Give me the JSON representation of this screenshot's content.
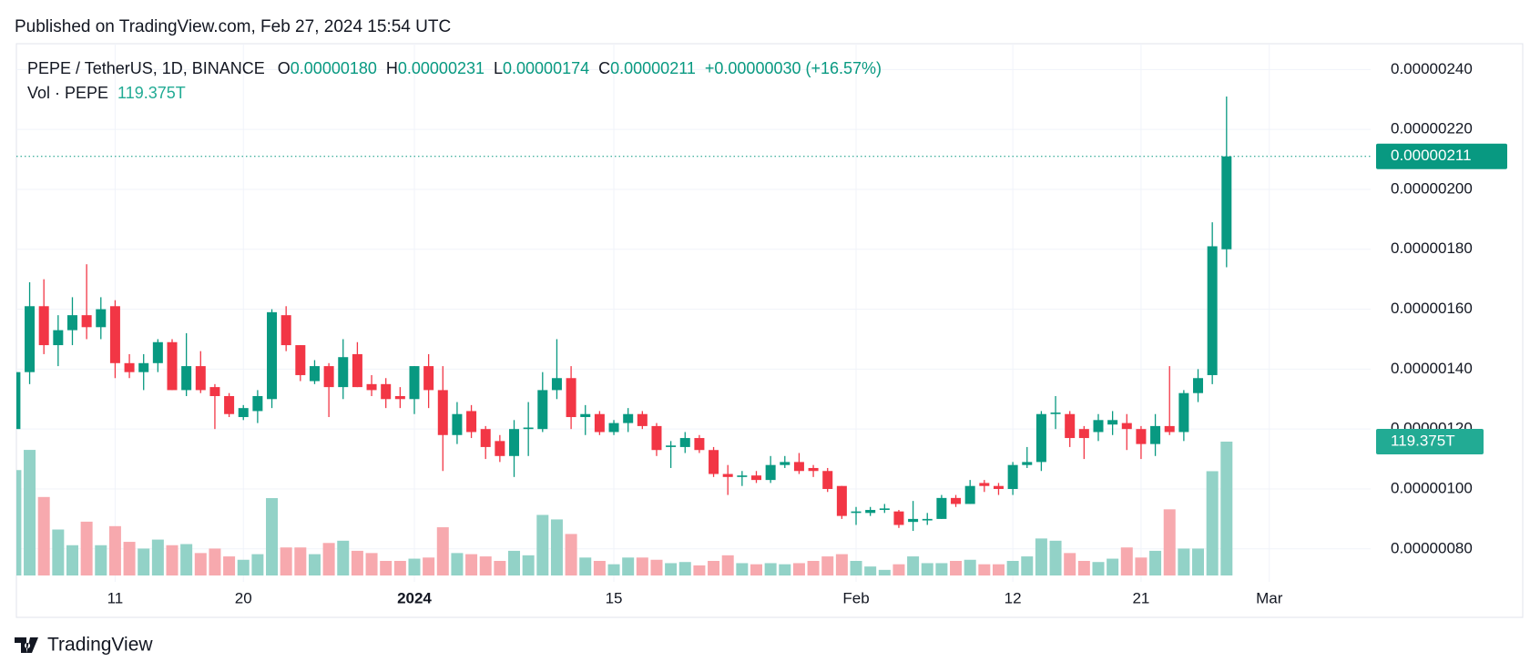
{
  "published": "Published on TradingView.com, Feb 27, 2024 15:54 UTC",
  "brand": "TradingView",
  "header": {
    "symbol": "PEPE / TetherUS, 1D, BINANCE",
    "open_label": "O",
    "open": "0.00000180",
    "high_label": "H",
    "high": "0.00000231",
    "low_label": "L",
    "low": "0.00000174",
    "close_label": "C",
    "close": "0.00000211",
    "change": "+0.00000030 (+16.57%)",
    "volume_title": "Vol · PEPE"
  },
  "chart_data": {
    "type": "candlestick",
    "categories": [
      null,
      null,
      null,
      null,
      null,
      null,
      null,
      "11",
      null,
      null,
      null,
      null,
      null,
      null,
      null,
      null,
      "20",
      null,
      null,
      null,
      null,
      null,
      null,
      null,
      null,
      null,
      null,
      null,
      "2024",
      null,
      null,
      null,
      null,
      null,
      null,
      null,
      null,
      null,
      null,
      null,
      null,
      null,
      "15",
      null,
      null,
      null,
      null,
      null,
      null,
      null,
      null,
      null,
      null,
      null,
      null,
      null,
      null,
      null,
      null,
      "Feb",
      null,
      null,
      null,
      null,
      null,
      null,
      null,
      null,
      null,
      null,
      "12",
      null,
      null,
      null,
      null,
      null,
      null,
      null,
      null,
      "21",
      null,
      null,
      null,
      null,
      null,
      null,
      null,
      null,
      "Mar"
    ],
    "open": [
      1.2e-06,
      1.39e-06,
      1.61e-06,
      1.48e-06,
      1.53e-06,
      1.58e-06,
      1.54e-06,
      1.61e-06,
      1.42e-06,
      1.39e-06,
      1.42e-06,
      1.49e-06,
      1.33e-06,
      1.41e-06,
      1.34e-06,
      1.31e-06,
      1.24e-06,
      1.26e-06,
      1.3e-06,
      1.58e-06,
      1.48e-06,
      1.36e-06,
      1.41e-06,
      1.34e-06,
      1.45e-06,
      1.35e-06,
      1.35e-06,
      1.31e-06,
      1.3e-06,
      1.41e-06,
      1.33e-06,
      1.18e-06,
      1.26e-06,
      1.2e-06,
      1.16e-06,
      1.11e-06,
      1.2e-06,
      1.2e-06,
      1.33e-06,
      1.37e-06,
      1.24e-06,
      1.25e-06,
      1.19e-06,
      1.22e-06,
      1.25e-06,
      1.21e-06,
      1.14e-06,
      1.14e-06,
      1.17e-06,
      1.13e-06,
      1.05e-06,
      1.04e-06,
      1.045e-06,
      1.03e-06,
      1.08e-06,
      1.09e-06,
      1.07e-06,
      1.06e-06,
      1.01e-06,
      9.2e-07,
      9.2e-07,
      9.3e-07,
      9.25e-07,
      8.9e-07,
      8.95e-07,
      9e-07,
      9.7e-07,
      9.5e-07,
      1.02e-06,
      1.01e-06,
      1e-06,
      1.08e-06,
      1.09e-06,
      1.25e-06,
      1.25e-06,
      1.2e-06,
      1.19e-06,
      1.215e-06,
      1.22e-06,
      1.2e-06,
      1.15e-06,
      1.21e-06,
      1.19e-06,
      1.32e-06,
      1.38e-06,
      1.8e-06,
      null,
      null,
      null
    ],
    "high": [
      1.4e-06,
      1.69e-06,
      1.7e-06,
      1.58e-06,
      1.64e-06,
      1.75e-06,
      1.64e-06,
      1.63e-06,
      1.45e-06,
      1.45e-06,
      1.5e-06,
      1.5e-06,
      1.52e-06,
      1.46e-06,
      1.35e-06,
      1.32e-06,
      1.28e-06,
      1.33e-06,
      1.6e-06,
      1.61e-06,
      1.48e-06,
      1.43e-06,
      1.42e-06,
      1.5e-06,
      1.49e-06,
      1.38e-06,
      1.37e-06,
      1.34e-06,
      1.41e-06,
      1.45e-06,
      1.41e-06,
      1.29e-06,
      1.28e-06,
      1.21e-06,
      1.18e-06,
      1.23e-06,
      1.29e-06,
      1.39e-06,
      1.5e-06,
      1.41e-06,
      1.28e-06,
      1.26e-06,
      1.23e-06,
      1.27e-06,
      1.26e-06,
      1.22e-06,
      1.16e-06,
      1.19e-06,
      1.18e-06,
      1.14e-06,
      1.08e-06,
      1.06e-06,
      1.06e-06,
      1.11e-06,
      1.11e-06,
      1.12e-06,
      1.08e-06,
      1.07e-06,
      1.01e-06,
      9.4e-07,
      9.4e-07,
      9.5e-07,
      9.3e-07,
      9.6e-07,
      9.2e-07,
      9.8e-07,
      9.8e-07,
      1.03e-06,
      1.03e-06,
      1.02e-06,
      1.09e-06,
      1.14e-06,
      1.26e-06,
      1.31e-06,
      1.26e-06,
      1.21e-06,
      1.25e-06,
      1.26e-06,
      1.25e-06,
      1.21e-06,
      1.25e-06,
      1.41e-06,
      1.33e-06,
      1.4e-06,
      1.89e-06,
      2.31e-06,
      null,
      null,
      null
    ],
    "low": [
      1.2e-06,
      1.35e-06,
      1.45e-06,
      1.41e-06,
      1.48e-06,
      1.5e-06,
      1.5e-06,
      1.37e-06,
      1.37e-06,
      1.33e-06,
      1.39e-06,
      1.33e-06,
      1.31e-06,
      1.32e-06,
      1.2e-06,
      1.24e-06,
      1.23e-06,
      1.22e-06,
      1.27e-06,
      1.46e-06,
      1.36e-06,
      1.35e-06,
      1.24e-06,
      1.3e-06,
      1.34e-06,
      1.31e-06,
      1.27e-06,
      1.27e-06,
      1.25e-06,
      1.27e-06,
      1.06e-06,
      1.15e-06,
      1.17e-06,
      1.1e-06,
      1.09e-06,
      1.04e-06,
      1.11e-06,
      1.19e-06,
      1.3e-06,
      1.2e-06,
      1.18e-06,
      1.18e-06,
      1.18e-06,
      1.19e-06,
      1.2e-06,
      1.11e-06,
      1.07e-06,
      1.12e-06,
      1.12e-06,
      1.04e-06,
      9.8e-07,
      1.01e-06,
      1.02e-06,
      1.02e-06,
      1.07e-06,
      1.05e-06,
      1.04e-06,
      9.9e-07,
      9e-07,
      8.8e-07,
      9.1e-07,
      9.2e-07,
      8.7e-07,
      8.6e-07,
      8.8e-07,
      9e-07,
      9.4e-07,
      9.5e-07,
      9.9e-07,
      9.8e-07,
      9.8e-07,
      1.07e-06,
      1.06e-06,
      1.2e-06,
      1.14e-06,
      1.1e-06,
      1.16e-06,
      1.18e-06,
      1.13e-06,
      1.1e-06,
      1.11e-06,
      1.18e-06,
      1.16e-06,
      1.29e-06,
      1.35e-06,
      1.74e-06,
      null,
      null,
      null
    ],
    "close": [
      1.39e-06,
      1.61e-06,
      1.48e-06,
      1.53e-06,
      1.58e-06,
      1.54e-06,
      1.6e-06,
      1.42e-06,
      1.39e-06,
      1.42e-06,
      1.49e-06,
      1.33e-06,
      1.41e-06,
      1.33e-06,
      1.31e-06,
      1.25e-06,
      1.27e-06,
      1.31e-06,
      1.59e-06,
      1.48e-06,
      1.38e-06,
      1.41e-06,
      1.34e-06,
      1.44e-06,
      1.34e-06,
      1.33e-06,
      1.3e-06,
      1.3e-06,
      1.41e-06,
      1.33e-06,
      1.18e-06,
      1.25e-06,
      1.19e-06,
      1.14e-06,
      1.11e-06,
      1.2e-06,
      1.205e-06,
      1.33e-06,
      1.37e-06,
      1.24e-06,
      1.25e-06,
      1.19e-06,
      1.22e-06,
      1.25e-06,
      1.21e-06,
      1.13e-06,
      1.145e-06,
      1.17e-06,
      1.13e-06,
      1.05e-06,
      1.04e-06,
      1.045e-06,
      1.03e-06,
      1.08e-06,
      1.09e-06,
      1.06e-06,
      1.06e-06,
      1e-06,
      9.1e-07,
      9.25e-07,
      9.3e-07,
      9.35e-07,
      8.8e-07,
      9e-07,
      9e-07,
      9.7e-07,
      9.5e-07,
      1.01e-06,
      1.01e-06,
      1e-06,
      1.08e-06,
      1.09e-06,
      1.25e-06,
      1.255e-06,
      1.17e-06,
      1.17e-06,
      1.23e-06,
      1.23e-06,
      1.2e-06,
      1.15e-06,
      1.21e-06,
      1.19e-06,
      1.32e-06,
      1.37e-06,
      1.81e-06,
      2.11e-06,
      null,
      null,
      null
    ],
    "volume": [
      94,
      112,
      70,
      41,
      27,
      48,
      27,
      44,
      30,
      24,
      32,
      27,
      28,
      20,
      24,
      17,
      14,
      19,
      69,
      25,
      25,
      19,
      29,
      31,
      22,
      20,
      13,
      13,
      15,
      16,
      43,
      20,
      19,
      17,
      13,
      22,
      18,
      54,
      50,
      37,
      16,
      13,
      10,
      16,
      16,
      14,
      11,
      12,
      9,
      13,
      18,
      11,
      10,
      11,
      10,
      11,
      13,
      17,
      19,
      13,
      8,
      5,
      10,
      17,
      11,
      11,
      13,
      14,
      10,
      10,
      13,
      17,
      33,
      31,
      20,
      13,
      12,
      15,
      25,
      16,
      22,
      59,
      24,
      24,
      93,
      119.375,
      null,
      null,
      null
    ],
    "volume_label": "119.375T",
    "last_price_label": "0.00000211",
    "ylim": [
      6.9e-07,
      2.48e-06
    ],
    "yticks": [
      {
        "value": 8e-07,
        "label": "0.00000080"
      },
      {
        "value": 1e-06,
        "label": "0.00000100"
      },
      {
        "value": 1.2e-06,
        "label": "0.00000120"
      },
      {
        "value": 1.4e-06,
        "label": "0.00000140"
      },
      {
        "value": 1.6e-06,
        "label": "0.00000160"
      },
      {
        "value": 1.8e-06,
        "label": "0.00000180"
      },
      {
        "value": 2e-06,
        "label": "0.00000200"
      },
      {
        "value": 2.2e-06,
        "label": "0.00000220"
      },
      {
        "value": 2.4e-06,
        "label": "0.00000240"
      }
    ],
    "grid": true,
    "up_color": "#089981",
    "down_color": "#f23645",
    "volume_up_color": "#92d2c7",
    "volume_down_color": "#f7a9ae"
  }
}
